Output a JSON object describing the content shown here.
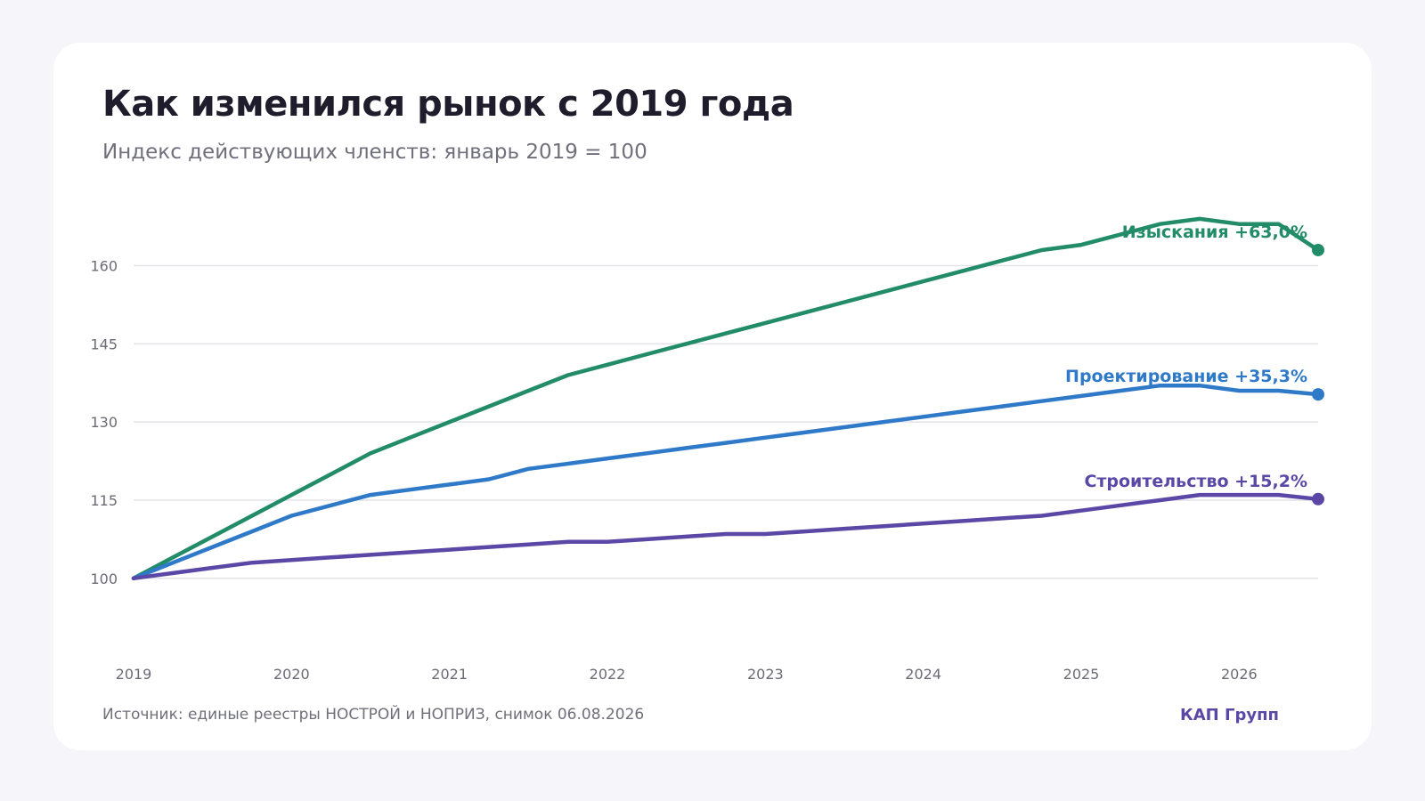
{
  "header": {
    "title": "Как изменился рынок с 2019 года",
    "subtitle": "Индекс действующих членств: январь 2019 = 100"
  },
  "footer": {
    "source": "Источник: единые реестры НОСТРОЙ и НОПРИЗ, снимок 06.08.2026",
    "brand": "КАП Групп"
  },
  "colors": {
    "survey": "#228b68",
    "design": "#2f79c9",
    "construction": "#5b48a6",
    "grid": "#e2e2e8",
    "text_muted": "#6b6b76"
  },
  "chart_data": {
    "type": "line",
    "title": "Как изменился рынок с 2019 года",
    "subtitle": "Индекс действующих членств: январь 2019 = 100",
    "xlabel": "",
    "ylabel": "",
    "xlim": [
      2019.0,
      2026.5
    ],
    "ylim": [
      88,
      170
    ],
    "x_ticks": [
      "2019",
      "2020",
      "2021",
      "2022",
      "2023",
      "2024",
      "2025",
      "2026"
    ],
    "y_ticks": [
      100,
      115,
      130,
      145,
      160
    ],
    "grid": true,
    "legend": "end-of-line labels",
    "series": [
      {
        "name": "Изыскания",
        "label": "+63,0%",
        "color": "#228b68",
        "x": [
          2019.0,
          2019.25,
          2019.5,
          2019.75,
          2020.0,
          2020.25,
          2020.5,
          2020.75,
          2021.0,
          2021.25,
          2021.5,
          2021.75,
          2022.0,
          2022.25,
          2022.5,
          2022.75,
          2023.0,
          2023.25,
          2023.5,
          2023.75,
          2024.0,
          2024.25,
          2024.5,
          2024.75,
          2025.0,
          2025.25,
          2025.5,
          2025.75,
          2026.0,
          2026.25,
          2026.5
        ],
        "y": [
          100,
          104,
          108,
          112,
          116,
          120,
          124,
          127,
          130,
          133,
          136,
          139,
          141,
          143,
          145,
          147,
          149,
          151,
          153,
          155,
          157,
          159,
          161,
          163,
          164,
          166,
          168,
          169,
          168,
          168,
          163
        ]
      },
      {
        "name": "Проектирование",
        "label": "+35,3%",
        "color": "#2f79c9",
        "x": [
          2019.0,
          2019.25,
          2019.5,
          2019.75,
          2020.0,
          2020.25,
          2020.5,
          2020.75,
          2021.0,
          2021.25,
          2021.5,
          2021.75,
          2022.0,
          2022.25,
          2022.5,
          2022.75,
          2023.0,
          2023.25,
          2023.5,
          2023.75,
          2024.0,
          2024.25,
          2024.5,
          2024.75,
          2025.0,
          2025.25,
          2025.5,
          2025.75,
          2026.0,
          2026.25,
          2026.5
        ],
        "y": [
          100,
          103,
          106,
          109,
          112,
          114,
          116,
          117,
          118,
          119,
          121,
          122,
          123,
          124,
          125,
          126,
          127,
          128,
          129,
          130,
          131,
          132,
          133,
          134,
          135,
          136,
          137,
          137,
          136,
          136,
          135.3
        ]
      },
      {
        "name": "Строительство",
        "label": "+15,2%",
        "color": "#5b48a6",
        "x": [
          2019.0,
          2019.25,
          2019.5,
          2019.75,
          2020.0,
          2020.25,
          2020.5,
          2020.75,
          2021.0,
          2021.25,
          2021.5,
          2021.75,
          2022.0,
          2022.25,
          2022.5,
          2022.75,
          2023.0,
          2023.25,
          2023.5,
          2023.75,
          2024.0,
          2024.25,
          2024.5,
          2024.75,
          2025.0,
          2025.25,
          2025.5,
          2025.75,
          2026.0,
          2026.25,
          2026.5
        ],
        "y": [
          100,
          101,
          102,
          103,
          103.5,
          104,
          104.5,
          105,
          105.5,
          106,
          106.5,
          107,
          107,
          107.5,
          108,
          108.5,
          108.5,
          109,
          109.5,
          110,
          110.5,
          111,
          111.5,
          112,
          113,
          114,
          115,
          116,
          116,
          116,
          115.2
        ]
      }
    ]
  }
}
